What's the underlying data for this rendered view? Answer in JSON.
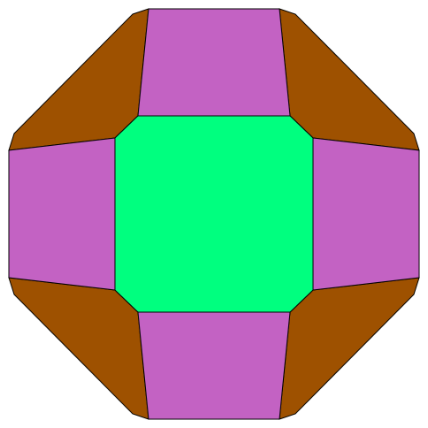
{
  "figure": {
    "subject": "Polyhedron net",
    "colors": {
      "center": "#00ff7f",
      "sides": "#c362c3",
      "corners": "#9e5100",
      "stroke": "#000000",
      "background": "#ffffff"
    },
    "faces": [
      {
        "id": "center-octagon",
        "role": "center"
      },
      {
        "id": "top-trapezoid",
        "role": "sides"
      },
      {
        "id": "bottom-trapezoid",
        "role": "sides"
      },
      {
        "id": "left-trapezoid",
        "role": "sides"
      },
      {
        "id": "right-trapezoid",
        "role": "sides"
      },
      {
        "id": "top-left-corner",
        "role": "corners"
      },
      {
        "id": "top-right-corner",
        "role": "corners"
      },
      {
        "id": "bottom-left-corner",
        "role": "corners"
      },
      {
        "id": "bottom-right-corner",
        "role": "corners"
      }
    ]
  }
}
